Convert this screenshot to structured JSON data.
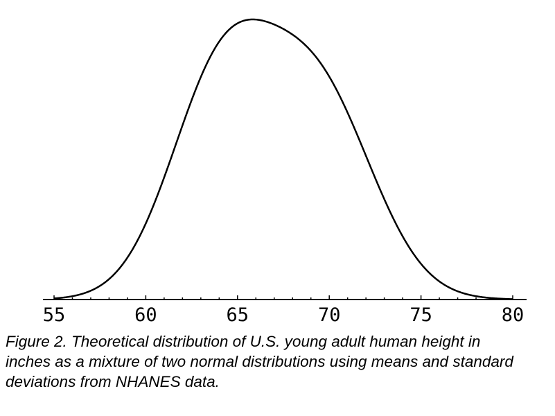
{
  "chart_data": {
    "type": "line",
    "title": "",
    "xlabel": "",
    "ylabel": "",
    "xlim": [
      55,
      80
    ],
    "x_ticks": [
      55,
      60,
      65,
      70,
      75,
      80
    ],
    "x_tick_labels": [
      "55",
      "60",
      "65",
      "70",
      "75",
      "80"
    ],
    "grid": false,
    "legend": "none",
    "series": [
      {
        "mixture": [
          {
            "weight": 0.5,
            "mean": 64.1,
            "sd": 2.8
          },
          {
            "weight": 0.5,
            "mean": 69.4,
            "sd": 3.0
          }
        ]
      }
    ]
  },
  "caption": "Figure 2.  Theoretical distribution of U.S. young adult human height in\ninches as a mixture of two normal distributions using means and standard\ndeviations from NHANES data."
}
